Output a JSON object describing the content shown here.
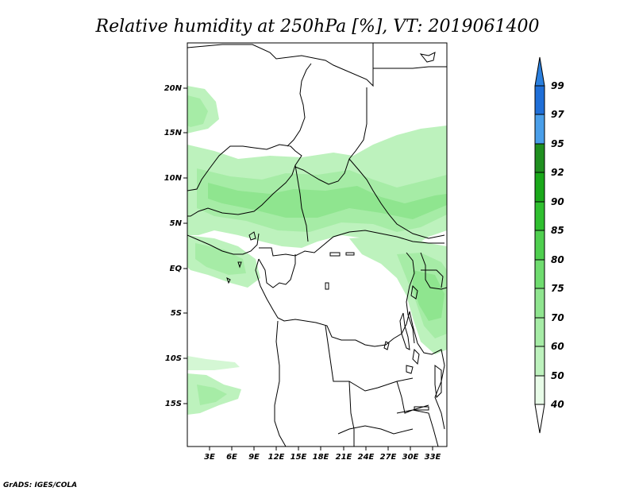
{
  "title": "Relative humidity at 250hPa [%], VT: 2019061400",
  "credit": "GrADS: IGES/COLA",
  "map": {
    "lon_labels": [
      "3E",
      "6E",
      "9E",
      "12E",
      "15E",
      "18E",
      "21E",
      "24E",
      "27E",
      "30E",
      "33E"
    ],
    "lat_labels": [
      "20N",
      "15N",
      "10N",
      "5N",
      "EQ",
      "5S",
      "10S",
      "15S"
    ]
  },
  "colorbar": {
    "levels": [
      "99",
      "97",
      "95",
      "92",
      "90",
      "85",
      "80",
      "75",
      "70",
      "60",
      "50",
      "40"
    ],
    "colors": {
      "c40": "#e8fce8",
      "c50": "#d4f7d4",
      "c60": "#bdf2bd",
      "c70": "#a6eca6",
      "c75": "#8fe58f",
      "c80": "#6fdc6f",
      "c85": "#4fcf4f",
      "c90": "#2fbf2f",
      "c92": "#1aa81a",
      "c95": "#1f8f1f",
      "c97": "#4a9fea",
      "c99": "#1f6fd8",
      "ctop": "#2a7fde"
    }
  }
}
